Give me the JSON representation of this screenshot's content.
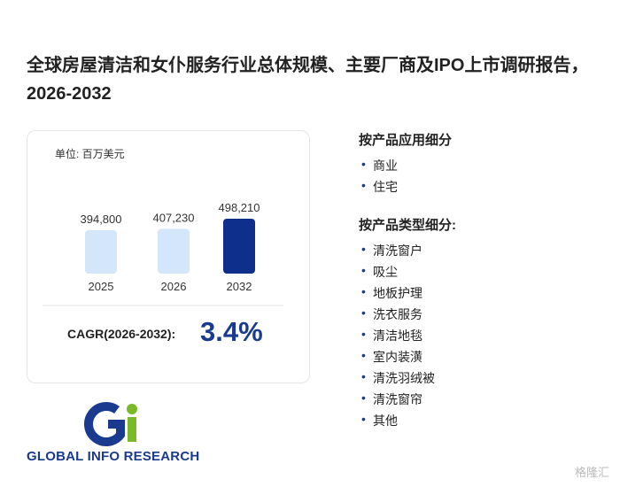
{
  "header": {
    "title": "全球房屋清洁和女仆服务行业总体规模、主要厂商及IPO上市调研报告，2026-2032"
  },
  "chart_data": {
    "type": "bar",
    "unit": "单位: 百万美元",
    "categories": [
      "2025",
      "2026",
      "2032"
    ],
    "values": [
      394800,
      407230,
      498210
    ],
    "value_labels": [
      "394,800",
      "407,230",
      "498,210"
    ],
    "colors": [
      "#d4e6fa",
      "#d4e6fa",
      "#0e2f8c"
    ],
    "cagr_label": "CAGR(2026-2032):",
    "cagr_value": "3.4%"
  },
  "segments": [
    {
      "title": "按产品应用细分",
      "items": [
        "商业",
        "住宅"
      ]
    },
    {
      "title": "按产品类型细分:",
      "items": [
        "清洗窗户",
        "吸尘",
        "地板护理",
        "洗衣服务",
        "清洁地毯",
        "室内装潢",
        "清洗羽绒被",
        "清洗窗帘",
        "其他"
      ]
    }
  ],
  "logo": {
    "text": "GLOBAL INFO RESEARCH"
  },
  "footer": {
    "watermark": "格隆汇"
  }
}
